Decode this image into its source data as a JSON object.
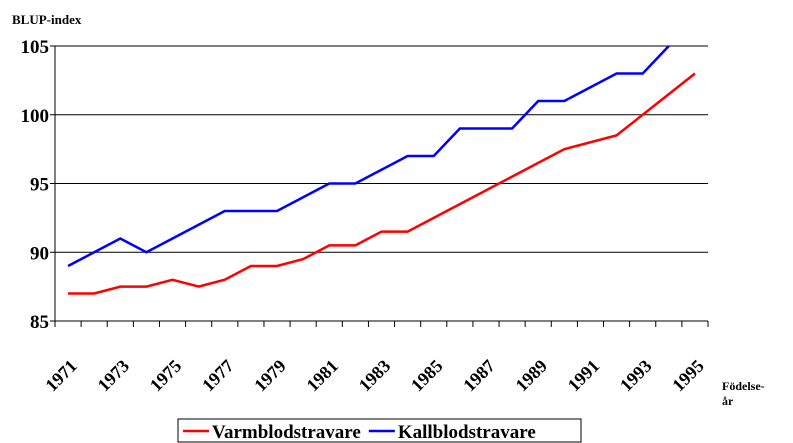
{
  "chart_data": {
    "type": "line",
    "y_label": "BLUP-index",
    "x_label": [
      "Födelse-",
      "år"
    ],
    "categories": [
      "1971",
      null,
      "1973",
      null,
      "1975",
      null,
      "1977",
      null,
      "1979",
      null,
      "1981",
      null,
      "1983",
      null,
      "1985",
      null,
      "1987",
      null,
      "1989",
      null,
      "1991",
      null,
      "1993",
      null,
      "1995"
    ],
    "series": [
      {
        "name": "Varmblodstravare",
        "color": "#ff0000",
        "values": [
          87,
          87,
          87.5,
          87.5,
          88,
          87.5,
          88,
          89,
          89,
          89.5,
          90.5,
          90.5,
          91.5,
          91.5,
          92.5,
          93.5,
          94.5,
          95.5,
          96.5,
          97.5,
          98,
          98.5,
          100,
          101.5,
          103
        ]
      },
      {
        "name": "Kallblodstravare",
        "color": "#0000ff",
        "values": [
          89,
          90,
          91,
          90,
          91,
          92,
          93,
          93,
          93,
          94,
          95,
          95,
          96,
          97,
          97,
          99,
          99,
          99,
          101,
          101,
          102,
          103,
          103,
          105,
          null
        ]
      }
    ],
    "ylim": [
      85,
      105
    ],
    "yticks": [
      85,
      90,
      95,
      100,
      105
    ],
    "grid": true
  }
}
